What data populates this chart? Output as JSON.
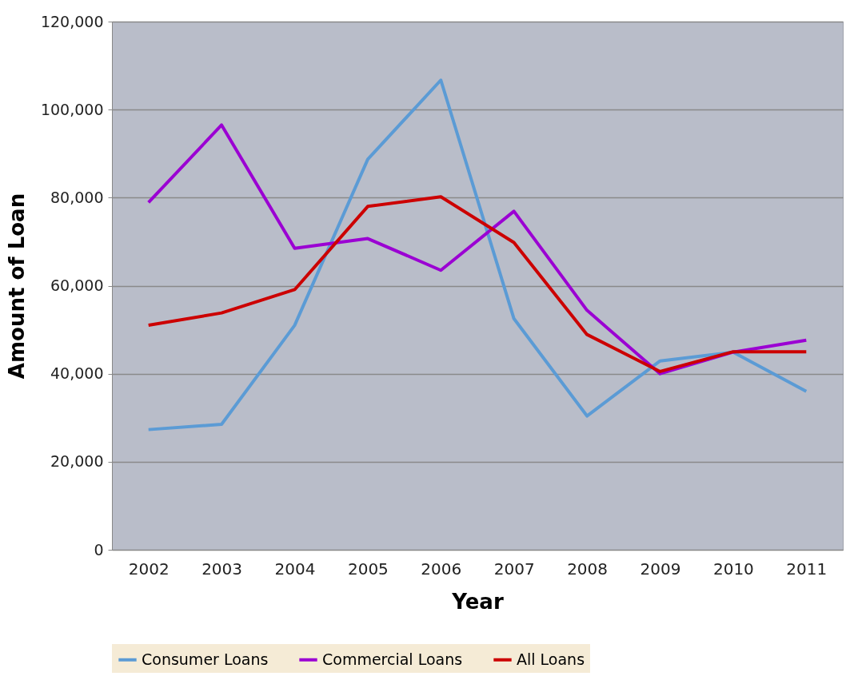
{
  "chart_data": {
    "type": "line",
    "xlabel": "Year",
    "ylabel": "Amount of Loan",
    "categories": [
      "2002",
      "2003",
      "2004",
      "2005",
      "2006",
      "2007",
      "2008",
      "2009",
      "2010",
      "2011"
    ],
    "series": [
      {
        "name": "Consumer Loans",
        "color": "#5b9bd5",
        "values": [
          27300,
          28500,
          51000,
          88700,
          106700,
          52500,
          30400,
          42900,
          44900,
          36000
        ]
      },
      {
        "name": "Commercial Loans",
        "color": "#9b00d3",
        "values": [
          78900,
          96500,
          68500,
          70700,
          63500,
          76900,
          54400,
          40000,
          44900,
          47600
        ]
      },
      {
        "name": "All Loans",
        "color": "#cc0000",
        "values": [
          51000,
          53800,
          59100,
          78000,
          80200,
          69800,
          48900,
          40500,
          45000,
          45000
        ]
      }
    ],
    "ylim": [
      0,
      120000
    ],
    "yticks": [
      0,
      {
        "value": 20000,
        "label": "20,000"
      },
      {
        "value": 40000,
        "label": "40,000"
      },
      {
        "value": 60000,
        "label": "60,000"
      },
      {
        "value": 80000,
        "label": "80,000"
      },
      {
        "value": 100000,
        "label": "100,000"
      },
      {
        "value": 120000,
        "label": "120,000"
      }
    ],
    "grid": "y",
    "legend": "bottom",
    "marker": "none",
    "line_style": "solid"
  }
}
